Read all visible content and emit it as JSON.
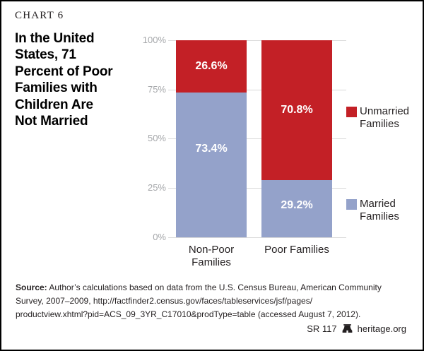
{
  "chart_label": "CHART 6",
  "title_lines": [
    "In the United",
    "States, 71",
    "Percent of Poor",
    "Families with",
    "Children Are",
    "Not Married"
  ],
  "chart_data": {
    "type": "bar",
    "stacked": true,
    "title": "In the United States, 71 Percent of Poor Families with Children Are Not Married",
    "categories": [
      "Non-Poor Families",
      "Poor Families"
    ],
    "series": [
      {
        "name": "Unmarried Families",
        "color": "#c32026",
        "values": [
          26.6,
          70.8
        ],
        "labels": [
          "26.6%",
          "70.8%"
        ]
      },
      {
        "name": "Married Families",
        "color": "#94a2ca",
        "values": [
          73.4,
          29.2
        ],
        "labels": [
          "73.4%",
          "29.2%"
        ]
      }
    ],
    "y_ticks": [
      "100%",
      "75%",
      "50%",
      "25%",
      "0%"
    ],
    "ylim": [
      0,
      100
    ],
    "grid": true,
    "legend_position": "right",
    "axis_label_color": "#a5a7aa",
    "gridline_color": "#d9d9d9"
  },
  "footer": {
    "source_bold": "Source:",
    "source_lines": [
      "Author’s calculations based on data from the U.S. Census Bureau, American Community",
      "Survey, 2007–2009, http://factfinder2.census.gov/faces/tableservices/jsf/pages/",
      "productview.xhtml?pid=ACS_09_3YR_C17010&prodType=table (accessed August 7, 2012)."
    ],
    "report_id": "SR 117",
    "website": "heritage.org"
  }
}
